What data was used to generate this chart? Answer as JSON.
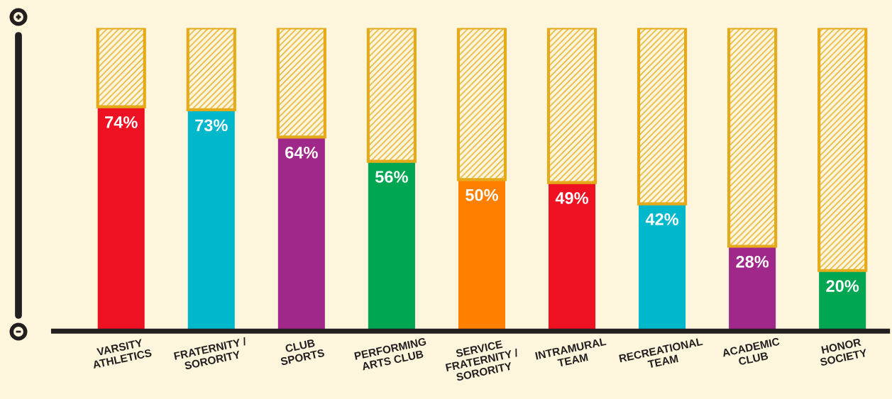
{
  "chart_data": {
    "type": "bar",
    "stacked": true,
    "categories": [
      "VARSITY\nATHLETICS",
      "FRATERNITY /\nSORORITY",
      "CLUB\nSPORTS",
      "PERFORMING\nARTS CLUB",
      "SERVICE\nFRATERNITY /\nSORORITY",
      "INTRAMURAL\nTEAM",
      "RECREATIONAL\nTEAM",
      "ACADEMIC\nCLUB",
      "HONOR\nSOCIETY"
    ],
    "ylim": [
      0,
      100
    ],
    "series": [
      {
        "colors": [
          "#ee1122",
          "#00b8cc",
          "#a0288a",
          "#00a651",
          "#ff7f00",
          "#ee1122",
          "#00b8cc",
          "#a0288a",
          "#00a651"
        ],
        "values": [
          74,
          73,
          64,
          56,
          50,
          49,
          42,
          28,
          20
        ],
        "value_labels": [
          "74%",
          "73%",
          "64%",
          "56%",
          "50%",
          "49%",
          "42%",
          "28%",
          "20%"
        ]
      },
      {
        "color": "#e5aa1a",
        "values": [
          26,
          27,
          36,
          44,
          50,
          51,
          58,
          72,
          80
        ]
      }
    ]
  }
}
